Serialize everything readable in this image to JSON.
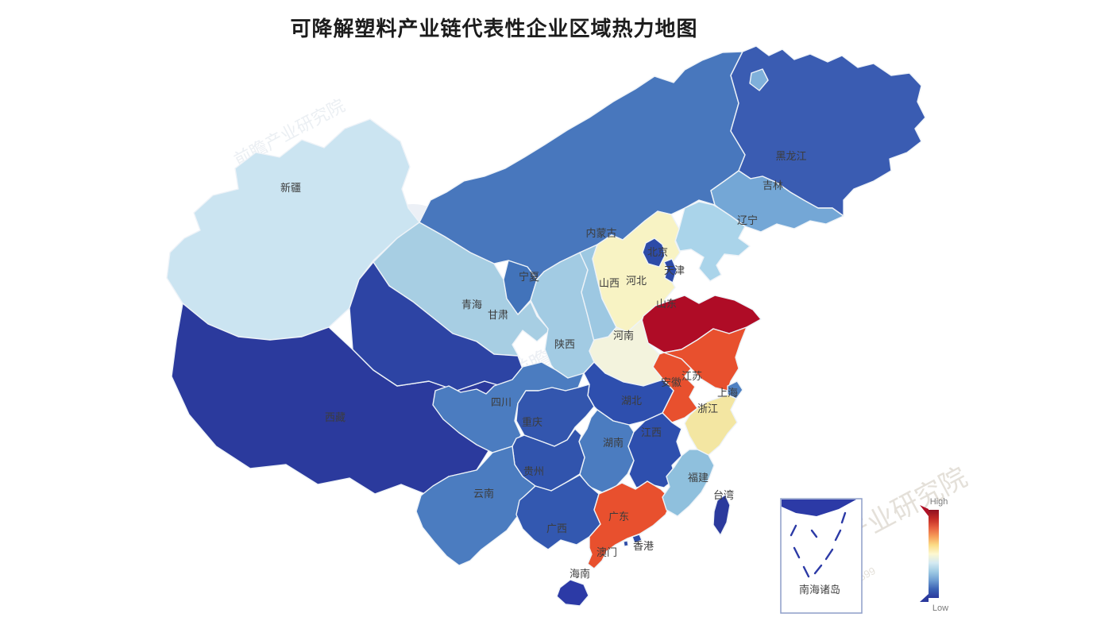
{
  "title": "可降解塑料产业链代表性企业区域热力地图",
  "legend": {
    "high_label": "High",
    "low_label": "Low",
    "gradient": [
      "#8e1020",
      "#c22a26",
      "#e65f40",
      "#f69c58",
      "#fbdc86",
      "#fdf8d0",
      "#d5eaf2",
      "#a0cbe4",
      "#6f9ed2",
      "#3c63b5",
      "#2b3a9d"
    ]
  },
  "inset": {
    "label": "南海诸岛"
  },
  "watermark": {
    "brand": "前瞻产业研究院",
    "code": "839599"
  },
  "chart_data": {
    "type": "heatmap",
    "title": "可降解塑料产业链代表性企业区域热力地图",
    "legend_scale": [
      "Low",
      "High"
    ],
    "note": "choropleth map of China; heat level encoded by RdYlBu-reversed color scale",
    "regions": [
      {
        "name": "新疆",
        "heat": "very-low"
      },
      {
        "name": "西藏",
        "heat": "low"
      },
      {
        "name": "青海",
        "heat": "low"
      },
      {
        "name": "甘肃",
        "heat": "low-mid"
      },
      {
        "name": "宁夏",
        "heat": "mid-low"
      },
      {
        "name": "内蒙古",
        "heat": "mid-low"
      },
      {
        "name": "黑龙江",
        "heat": "mid-low"
      },
      {
        "name": "吉林",
        "heat": "low-mid"
      },
      {
        "name": "辽宁",
        "heat": "low-mid"
      },
      {
        "name": "河北",
        "heat": "mid-high"
      },
      {
        "name": "北京",
        "heat": "low"
      },
      {
        "name": "天津",
        "heat": "low"
      },
      {
        "name": "山西",
        "heat": "low-mid"
      },
      {
        "name": "山东",
        "heat": "highest"
      },
      {
        "name": "河南",
        "heat": "mid"
      },
      {
        "name": "陕西",
        "heat": "low-mid"
      },
      {
        "name": "江苏",
        "heat": "high"
      },
      {
        "name": "安徽",
        "heat": "high"
      },
      {
        "name": "上海",
        "heat": "mid-low"
      },
      {
        "name": "浙江",
        "heat": "mid-high"
      },
      {
        "name": "湖北",
        "heat": "low"
      },
      {
        "name": "四川",
        "heat": "mid-low"
      },
      {
        "name": "重庆",
        "heat": "low"
      },
      {
        "name": "湖南",
        "heat": "mid-low"
      },
      {
        "name": "江西",
        "heat": "low"
      },
      {
        "name": "贵州",
        "heat": "low"
      },
      {
        "name": "云南",
        "heat": "mid-low"
      },
      {
        "name": "福建",
        "heat": "low-mid"
      },
      {
        "name": "台湾",
        "heat": "low"
      },
      {
        "name": "广东",
        "heat": "high"
      },
      {
        "name": "广西",
        "heat": "low"
      },
      {
        "name": "海南",
        "heat": "low"
      },
      {
        "name": "香港",
        "heat": "low"
      },
      {
        "name": "澳门",
        "heat": "low"
      }
    ]
  },
  "provinces": [
    {
      "id": "xinjiang",
      "name": "新疆",
      "color": "#cbe4f1"
    },
    {
      "id": "tibet",
      "name": "西藏",
      "color": "#2b3a9d"
    },
    {
      "id": "inner_mongolia",
      "name": "内蒙古",
      "color": "#4877bd"
    },
    {
      "id": "heilongjiang",
      "name": "黑龙江",
      "color": "#3a5cb2"
    },
    {
      "id": "gansu",
      "name": "甘肃",
      "color": "#a7cee3"
    },
    {
      "id": "qinghai",
      "name": "青海",
      "color": "#2d44a4"
    },
    {
      "id": "jilin",
      "name": "吉林",
      "color": "#74a7d6"
    },
    {
      "id": "liaoning",
      "name": "辽宁",
      "color": "#aad4ea"
    },
    {
      "id": "ningxia",
      "name": "宁夏",
      "color": "#4273ba"
    },
    {
      "id": "shaanxi",
      "name": "陕西",
      "color": "#a2cbe3"
    },
    {
      "id": "shanxi",
      "name": "山西",
      "color": "#9dc8e2"
    },
    {
      "id": "hebei",
      "name": "河北",
      "color": "#f8f3c4"
    },
    {
      "id": "beijing",
      "name": "北京",
      "color": "#2d4ba8"
    },
    {
      "id": "tianjin",
      "name": "天津",
      "color": "#2d4ba8"
    },
    {
      "id": "shandong",
      "name": "山东",
      "color": "#af0c26"
    },
    {
      "id": "henan",
      "name": "河南",
      "color": "#f3f3dd"
    },
    {
      "id": "jiangsu",
      "name": "江苏",
      "color": "#e8502e"
    },
    {
      "id": "anhui",
      "name": "安徽",
      "color": "#e8502e"
    },
    {
      "id": "shanghai",
      "name": "上海",
      "color": "#4f81c2"
    },
    {
      "id": "zhejiang",
      "name": "浙江",
      "color": "#f3e6a2"
    },
    {
      "id": "hubei",
      "name": "湖北",
      "color": "#2e4fae"
    },
    {
      "id": "sichuan",
      "name": "四川",
      "color": "#4b7cc0"
    },
    {
      "id": "chongqing",
      "name": "重庆",
      "color": "#3356ae"
    },
    {
      "id": "hunan",
      "name": "湖南",
      "color": "#4b7cc0"
    },
    {
      "id": "jiangxi",
      "name": "江西",
      "color": "#2e4fae"
    },
    {
      "id": "guizhou",
      "name": "贵州",
      "color": "#3154ad"
    },
    {
      "id": "yunnan",
      "name": "云南",
      "color": "#4b7cc0"
    },
    {
      "id": "guangxi",
      "name": "广西",
      "color": "#3358b0"
    },
    {
      "id": "guangdong",
      "name": "广东",
      "color": "#e8502e"
    },
    {
      "id": "fujian",
      "name": "福建",
      "color": "#8fc0dd"
    },
    {
      "id": "taiwan",
      "name": "台湾",
      "color": "#2b3a9d"
    },
    {
      "id": "hainan",
      "name": "海南",
      "color": "#2c3aa6"
    },
    {
      "id": "hongkong",
      "name": "香港",
      "color": "#2d4ba8"
    },
    {
      "id": "macau",
      "name": "澳门",
      "color": "#2d4ba8"
    }
  ]
}
